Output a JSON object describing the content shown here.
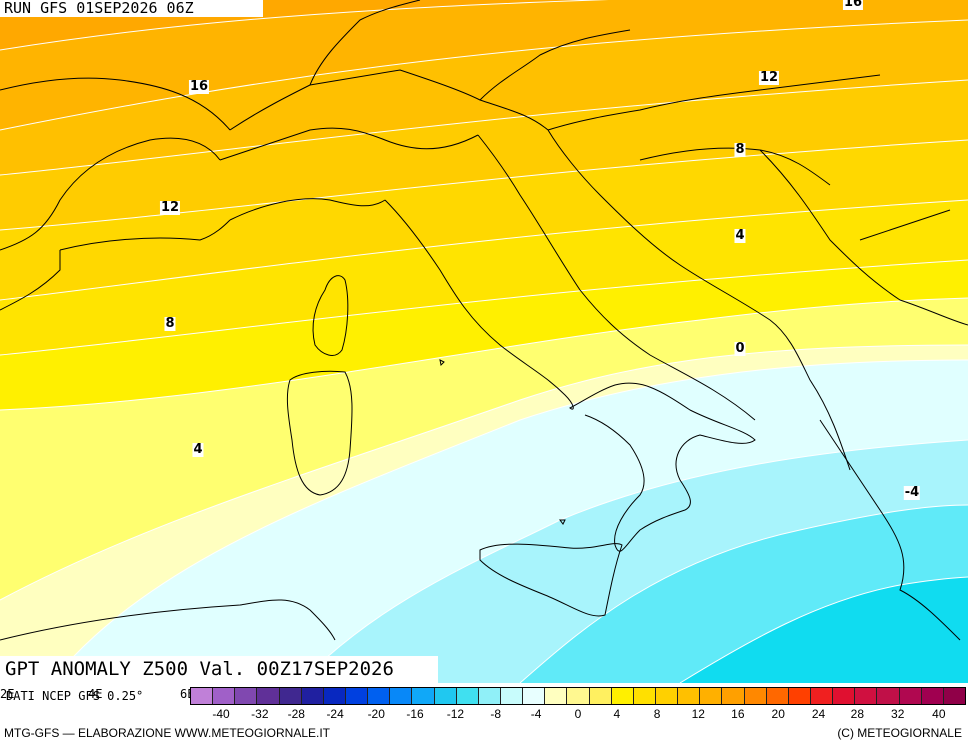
{
  "header": {
    "run_title": "RUN GFS 01SEP2026 06Z"
  },
  "field_title": "GPT ANOMALY Z500 Val. 00Z17SEP2026",
  "contour_labels": [
    "16",
    "16",
    "12",
    "12",
    "12",
    "8",
    "8",
    "4",
    "4",
    "0",
    "-4"
  ],
  "lon_labels": [
    "2E",
    "4E",
    "6E"
  ],
  "source_text": "DATI NCEP GFS 0.25°",
  "colorbar": {
    "ticks": [
      "-40",
      "-32",
      "-28",
      "-24",
      "-20",
      "-16",
      "-12",
      "-8",
      "-4",
      "0",
      "4",
      "8",
      "12",
      "16",
      "20",
      "24",
      "28",
      "32",
      "40"
    ],
    "colors": [
      "#c080d8",
      "#a060c8",
      "#8048b0",
      "#603098",
      "#402890",
      "#2020a0",
      "#0828c0",
      "#0040e0",
      "#0060f0",
      "#0888f8",
      "#10a8f8",
      "#20c8f0",
      "#40e0f0",
      "#90f0f8",
      "#c8fcfc",
      "#e8ffff",
      "#ffffc0",
      "#fff890",
      "#fff060",
      "#fff000",
      "#ffe000",
      "#ffd000",
      "#ffc000",
      "#ffb000",
      "#ffa000",
      "#ff8800",
      "#ff6800",
      "#ff4000",
      "#f02020",
      "#e01030",
      "#d01040",
      "#c01048",
      "#b00850",
      "#a00050",
      "#900048"
    ]
  },
  "credits": {
    "left": "MTG-GFS — ELABORAZIONE WWW.METEOGIORNALE.IT",
    "right": "(C) METEOGIORNALE"
  },
  "palette": {
    "pos16": "#ffa800",
    "pos12": "#ffc000",
    "pos8": "#ffd800",
    "pos4": "#fff000",
    "pos0": "#ffffc0",
    "neg0": "#e0ffff",
    "neg4": "#a8f4fc",
    "neg8": "#40e4f4",
    "neg12": "#10d0ec",
    "coast": "#000000",
    "contour": "#ffffff"
  }
}
